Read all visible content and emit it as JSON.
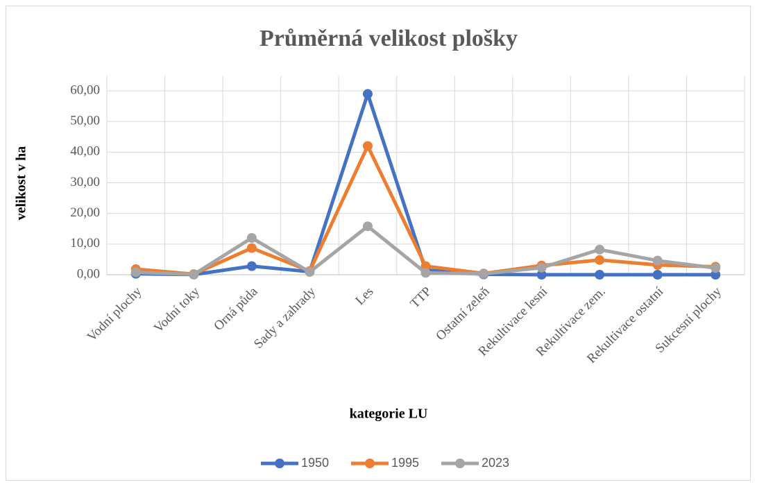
{
  "chart_data": {
    "type": "line",
    "title": "Průměrná velikost plošky",
    "x_label": "kategorie LU",
    "y_label": "velikost v ha",
    "categories": [
      "Vodní plochy",
      "Vodní toky",
      "Orná půda",
      "Sady a zahrady",
      "Les",
      "TTP",
      "Ostatní zeleň",
      "Rekultivace lesní",
      "Rekultivace zem.",
      "Rekultivace ostatní",
      "Sukcesní plochy"
    ],
    "series": [
      {
        "name": "1950",
        "color": "#4472c4",
        "values": [
          0.3,
          0.05,
          2.8,
          1.0,
          59.0,
          1.5,
          0.1,
          0,
          0,
          0,
          0
        ]
      },
      {
        "name": "1995",
        "color": "#ed7d31",
        "values": [
          1.8,
          0.2,
          8.7,
          1.2,
          42.0,
          2.8,
          0.4,
          3.0,
          4.8,
          3.2,
          2.6
        ]
      },
      {
        "name": "2023",
        "color": "#a5a5a5",
        "values": [
          0.8,
          0.1,
          12.0,
          0.9,
          15.8,
          0.6,
          0.3,
          2.3,
          8.2,
          4.6,
          2.2
        ]
      }
    ],
    "ylim": [
      0,
      60
    ],
    "yticks": [
      {
        "value": 0,
        "label": "0,00"
      },
      {
        "value": 10,
        "label": "10,00"
      },
      {
        "value": 20,
        "label": "20,00"
      },
      {
        "value": 30,
        "label": "30,00"
      },
      {
        "value": 40,
        "label": "40,00"
      },
      {
        "value": 50,
        "label": "50,00"
      },
      {
        "value": 60,
        "label": "60,00"
      }
    ],
    "grid": true,
    "legend": "bottom"
  }
}
